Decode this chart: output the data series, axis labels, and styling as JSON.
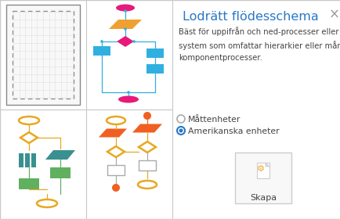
{
  "title": "Lodrätt flödesschema",
  "close_x": "×",
  "description": "Bäst för uppifrån och ned-processer eller\nsystem som omfattar hierarkier eller många\nkomponentprocesser.",
  "radio1": "Måttenheter",
  "radio2": "Amerikanska enheter",
  "button_label": "Skapa",
  "bg_color": "#f0f0f0",
  "panel_bg": "#ffffff",
  "border_color": "#c8c8c8",
  "title_color": "#2878c8",
  "text_color": "#444444",
  "pink": "#e8197a",
  "orange": "#f0a030",
  "blue": "#30b0e0",
  "teal": "#3a9090",
  "green": "#60b060",
  "yellow_orange": "#e8a820",
  "light_orange": "#f06020",
  "grid_color": "#e0e0e0",
  "dashed_border": "#909090",
  "outer_border": "#888888"
}
